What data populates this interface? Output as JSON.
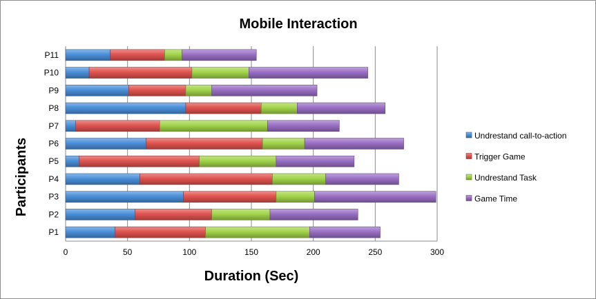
{
  "chart_data": {
    "type": "bar",
    "orientation": "horizontal",
    "stacked": true,
    "title": "Mobile Interaction",
    "xlabel": "Duration (Sec)",
    "ylabel": "Participants",
    "xlim": [
      0,
      300
    ],
    "xticks": [
      "0",
      "50",
      "100",
      "150",
      "200",
      "250",
      "300"
    ],
    "grid": "vertical",
    "legend_position": "right",
    "categories": [
      "P1",
      "P2",
      "P3",
      "P4",
      "P5",
      "P6",
      "P7",
      "P8",
      "P9",
      "P10",
      "P11"
    ],
    "series": [
      {
        "name": "Undrestand call-to-action",
        "color": "#4a8fd9",
        "values": [
          40,
          56,
          95,
          60,
          11,
          65,
          8,
          97,
          51,
          19,
          36
        ]
      },
      {
        "name": "Trigger Game",
        "color": "#e0534f",
        "values": [
          73,
          62,
          75,
          107,
          97,
          94,
          68,
          61,
          46,
          83,
          44
        ]
      },
      {
        "name": "Undrestand Task",
        "color": "#a2d44a",
        "values": [
          84,
          47,
          31,
          43,
          62,
          34,
          87,
          29,
          21,
          46,
          14
        ]
      },
      {
        "name": "Game Time",
        "color": "#9a6fc4",
        "values": [
          57,
          71,
          98,
          59,
          63,
          80,
          58,
          71,
          85,
          96,
          60
        ]
      }
    ]
  }
}
